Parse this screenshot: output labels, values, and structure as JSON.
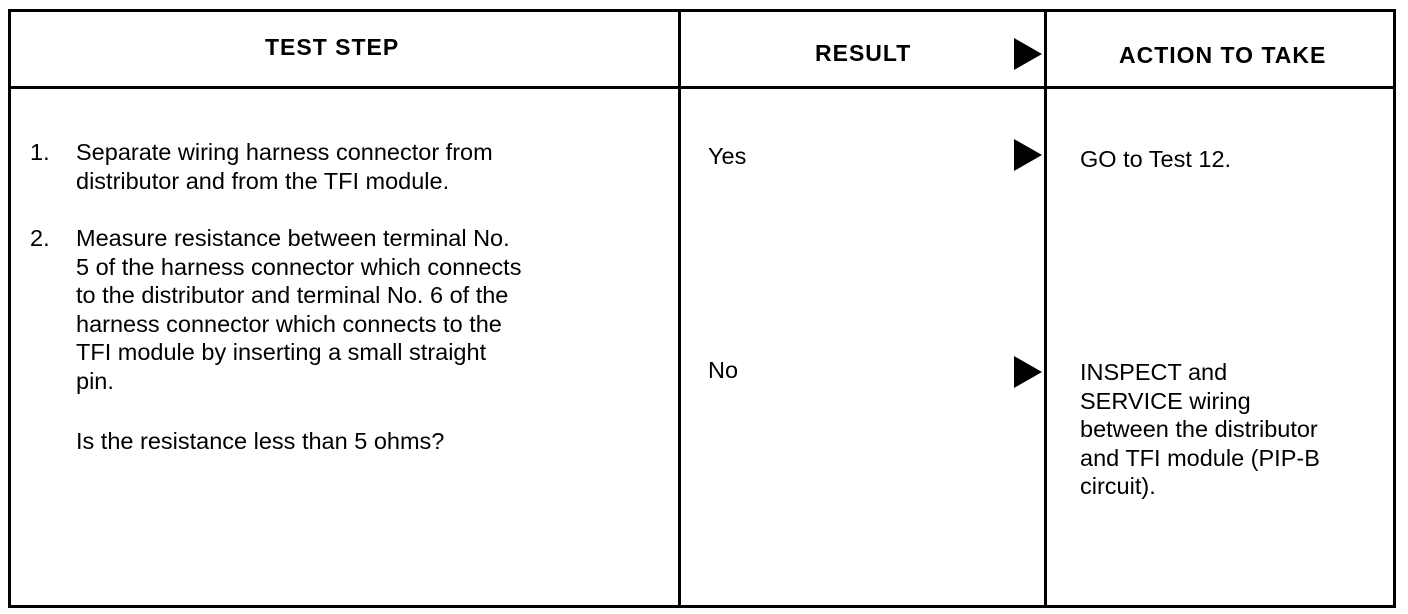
{
  "headers": {
    "test_step": "TEST STEP",
    "result": "RESULT",
    "action": "ACTION TO TAKE"
  },
  "steps": [
    {
      "num": "1.",
      "lines": [
        "Separate wiring harness connector from",
        "distributor and from the TFI module."
      ]
    },
    {
      "num": "2.",
      "lines": [
        "Measure resistance between terminal No.",
        "5 of the harness connector which connects",
        "to the distributor and terminal No. 6 of the",
        "harness connector which connects to the",
        "TFI module by inserting a small straight",
        "pin."
      ]
    }
  ],
  "question": "Is the resistance less than 5 ohms?",
  "results": [
    {
      "result": "Yes",
      "action_lines": [
        "GO to Test 12."
      ]
    },
    {
      "result": "No",
      "action_lines": [
        "INSPECT and",
        "SERVICE wiring",
        "between the distributor",
        "and TFI module (PIP-B",
        "circuit)."
      ]
    }
  ],
  "icons": {
    "arrow": "right-triangle-arrow-icon"
  }
}
